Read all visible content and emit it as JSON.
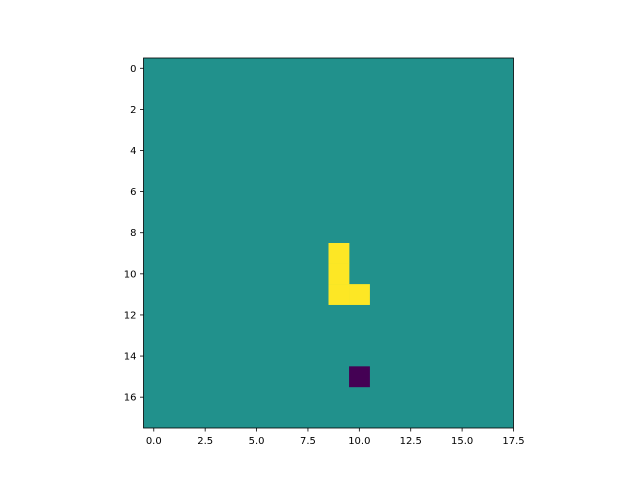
{
  "chart_data": {
    "type": "heatmap",
    "title": "",
    "xlabel": "",
    "ylabel": "",
    "grid": false,
    "rows": 18,
    "cols": 18,
    "xlim": [
      -0.5,
      17.5
    ],
    "ylim": [
      17.5,
      -0.5
    ],
    "xticks": [
      0.0,
      2.5,
      5.0,
      7.5,
      10.0,
      12.5,
      15.0,
      17.5
    ],
    "xtick_labels": [
      "0.0",
      "2.5",
      "5.0",
      "7.5",
      "10.0",
      "12.5",
      "15.0",
      "17.5"
    ],
    "yticks": [
      0,
      2,
      4,
      6,
      8,
      10,
      12,
      14,
      16
    ],
    "ytick_labels": [
      "0",
      "2",
      "4",
      "6",
      "8",
      "10",
      "12",
      "14",
      "16"
    ],
    "colormap": "viridis",
    "background_value": 0,
    "colors": {
      "background": "#21918c",
      "high": "#fde725",
      "low": "#440154"
    },
    "cells": [
      {
        "row": 9,
        "col": 9,
        "value": 1
      },
      {
        "row": 10,
        "col": 9,
        "value": 1
      },
      {
        "row": 11,
        "col": 9,
        "value": 1
      },
      {
        "row": 11,
        "col": 10,
        "value": 1
      },
      {
        "row": 15,
        "col": 10,
        "value": -1
      }
    ]
  }
}
